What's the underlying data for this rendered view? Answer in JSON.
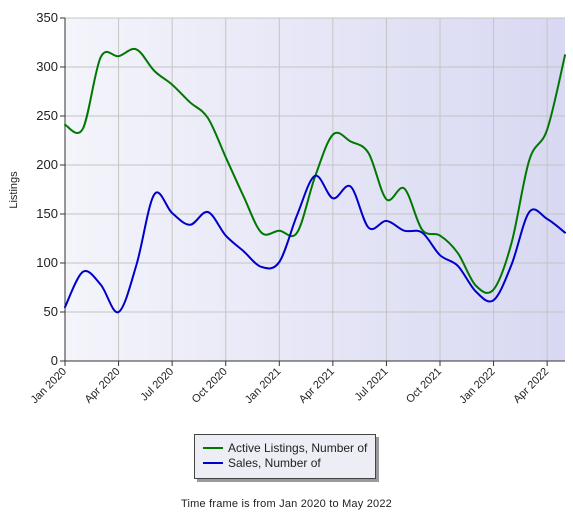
{
  "chart_data": {
    "type": "line",
    "ylabel": "Listings",
    "ylim": [
      0,
      350
    ],
    "yticks": [
      0,
      50,
      100,
      150,
      200,
      250,
      300,
      350
    ],
    "xticks": [
      "Jan 2020",
      "Apr 2020",
      "Jul 2020",
      "Oct 2020",
      "Jan 2021",
      "Apr 2021",
      "Jul 2021",
      "Oct 2021",
      "Jan 2022",
      "Apr 2022"
    ],
    "x": [
      "Jan 2020",
      "Feb 2020",
      "Mar 2020",
      "Apr 2020",
      "May 2020",
      "Jun 2020",
      "Jul 2020",
      "Aug 2020",
      "Sep 2020",
      "Oct 2020",
      "Nov 2020",
      "Dec 2020",
      "Jan 2021",
      "Feb 2021",
      "Mar 2021",
      "Apr 2021",
      "May 2021",
      "Jun 2021",
      "Jul 2021",
      "Aug 2021",
      "Sep 2021",
      "Oct 2021",
      "Nov 2021",
      "Dec 2021",
      "Jan 2022",
      "Feb 2022",
      "Mar 2022",
      "Apr 2022",
      "May 2022"
    ],
    "series": [
      {
        "name": "Active Listings, Number of",
        "color": "#007800",
        "values": [
          241,
          237,
          310,
          311,
          318,
          296,
          282,
          264,
          248,
          208,
          168,
          131,
          133,
          131,
          188,
          231,
          224,
          212,
          165,
          176,
          134,
          128,
          110,
          77,
          73,
          120,
          205,
          236,
          312
        ]
      },
      {
        "name": "Sales, Number of",
        "color": "#0000c8",
        "values": [
          55,
          91,
          78,
          50,
          98,
          170,
          151,
          139,
          152,
          128,
          112,
          96,
          101,
          149,
          189,
          166,
          178,
          136,
          143,
          133,
          131,
          108,
          97,
          71,
          62,
          98,
          152,
          145,
          131
        ]
      }
    ],
    "grid": true,
    "legend_position": "bottom"
  },
  "footer": {
    "text": "Time frame is from Jan 2020 to May 2022"
  }
}
